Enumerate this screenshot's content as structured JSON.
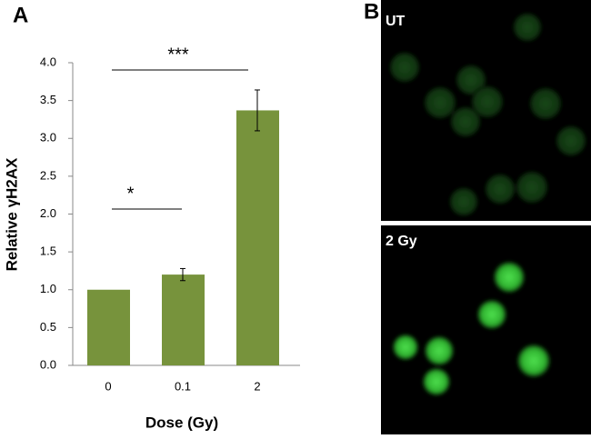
{
  "chart_data": {
    "type": "bar",
    "panel_label": "A",
    "x_label": "Dose (Gy)",
    "y_label": "Relative γH2AX",
    "categories": [
      "0",
      "0.1",
      "2"
    ],
    "values": [
      1.0,
      1.2,
      3.37
    ],
    "errors": [
      null,
      0.08,
      0.27
    ],
    "color": "#77933c",
    "ylim": [
      0,
      4
    ],
    "yticks": [
      {
        "value": 0,
        "label": "0.0"
      },
      {
        "value": 0.5,
        "label": "0.5"
      },
      {
        "value": 1,
        "label": "1.0"
      },
      {
        "value": 1.5,
        "label": "1.5"
      },
      {
        "value": 2,
        "label": "2.0"
      },
      {
        "value": 2.5,
        "label": "2.5"
      },
      {
        "value": 3,
        "label": "3.0"
      },
      {
        "value": 3.5,
        "label": "3.5"
      },
      {
        "value": 4,
        "label": "4.0"
      }
    ],
    "annotations": [
      "*",
      "***"
    ]
  },
  "image_panel": {
    "panel_label": "B",
    "images": [
      {
        "label": "UT"
      },
      {
        "label": "2 Gy"
      }
    ]
  }
}
